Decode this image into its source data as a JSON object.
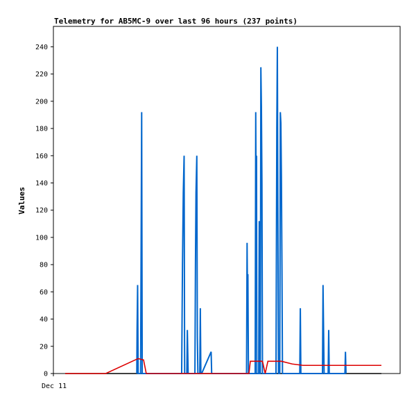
{
  "chart_data": {
    "type": "line",
    "title": "Telemetry for AB5MC-9 over last 96 hours (237 points)",
    "ylabel": "Values",
    "x_tick_label": "Dec 11",
    "ylim": [
      0,
      255
    ],
    "yticks": [
      0,
      20,
      40,
      60,
      80,
      100,
      120,
      140,
      160,
      180,
      200,
      220,
      240
    ],
    "x_domain_hours": [
      0,
      96
    ],
    "grid": false,
    "legend": "none",
    "series": [
      {
        "color": "#0066cc",
        "style": "spikes",
        "points": [
          [
            26.5,
            0
          ],
          [
            26.6,
            32
          ],
          [
            26.8,
            65
          ],
          [
            27.0,
            0
          ],
          [
            27.9,
            0
          ],
          [
            28.1,
            96
          ],
          [
            28.3,
            192
          ],
          [
            28.5,
            0
          ],
          [
            43.1,
            0
          ],
          [
            43.2,
            27
          ],
          [
            43.4,
            80
          ],
          [
            43.7,
            133
          ],
          [
            44.0,
            160
          ],
          [
            44.2,
            0
          ],
          [
            45.0,
            0
          ],
          [
            45.2,
            32
          ],
          [
            45.5,
            0
          ],
          [
            48.0,
            0
          ],
          [
            48.2,
            80
          ],
          [
            48.4,
            133
          ],
          [
            48.7,
            160
          ],
          [
            48.9,
            27
          ],
          [
            49.1,
            0
          ],
          [
            49.8,
            0
          ],
          [
            50.0,
            48
          ],
          [
            50.2,
            0
          ],
          [
            50.5,
            0
          ],
          [
            54.0,
            16
          ],
          [
            54.2,
            0
          ],
          [
            67.1,
            0
          ],
          [
            67.3,
            96
          ],
          [
            67.5,
            40
          ],
          [
            67.6,
            73
          ],
          [
            67.8,
            0
          ],
          [
            70.3,
            0
          ],
          [
            70.5,
            192
          ],
          [
            70.7,
            96
          ],
          [
            70.8,
            160
          ],
          [
            70.9,
            0
          ],
          [
            71.6,
            0
          ],
          [
            71.8,
            112
          ],
          [
            72.0,
            0
          ],
          [
            72.2,
            0
          ],
          [
            72.4,
            225
          ],
          [
            72.6,
            196
          ],
          [
            72.8,
            140
          ],
          [
            73.0,
            0
          ],
          [
            78.0,
            0
          ],
          [
            78.1,
            60
          ],
          [
            78.3,
            180
          ],
          [
            78.5,
            240
          ],
          [
            78.7,
            120
          ],
          [
            78.9,
            0
          ],
          [
            79.4,
            0
          ],
          [
            79.6,
            192
          ],
          [
            79.8,
            184
          ],
          [
            80.0,
            145
          ],
          [
            80.2,
            80
          ],
          [
            80.4,
            0
          ],
          [
            86.8,
            0
          ],
          [
            87.0,
            48
          ],
          [
            87.2,
            0
          ],
          [
            95.2,
            0
          ],
          [
            95.4,
            65
          ],
          [
            95.6,
            32
          ],
          [
            95.8,
            0
          ],
          [
            97.3,
            0
          ],
          [
            97.5,
            32
          ],
          [
            97.7,
            0
          ],
          [
            103.5,
            0
          ],
          [
            103.7,
            16
          ],
          [
            103.9,
            0
          ]
        ]
      },
      {
        "color": "#dd0000",
        "style": "line",
        "points": [
          [
            0,
            0
          ],
          [
            15,
            0
          ],
          [
            27,
            11
          ],
          [
            29,
            10
          ],
          [
            30,
            0
          ],
          [
            68,
            0
          ],
          [
            68.5,
            9
          ],
          [
            73,
            9
          ],
          [
            74,
            0
          ],
          [
            75,
            9
          ],
          [
            80,
            9
          ],
          [
            84,
            7
          ],
          [
            88,
            6
          ],
          [
            96,
            6
          ],
          [
            104,
            6
          ],
          [
            110,
            6
          ],
          [
            117,
            6
          ]
        ]
      }
    ]
  }
}
